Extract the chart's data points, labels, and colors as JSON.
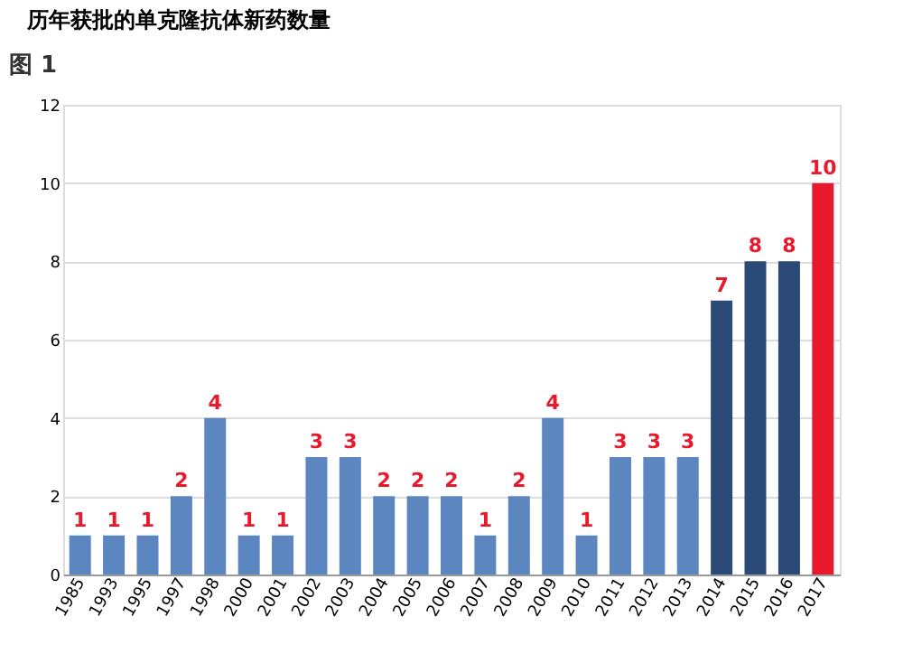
{
  "chart_data": {
    "type": "bar",
    "title": "历年获批的单克隆抗体新药数量",
    "annotations": [
      "图 1"
    ],
    "categories": [
      "1985",
      "1993",
      "1995",
      "1997",
      "1998",
      "2000",
      "2001",
      "2002",
      "2003",
      "2004",
      "2005",
      "2006",
      "2007",
      "2008",
      "2009",
      "2010",
      "2011",
      "2012",
      "2013",
      "2014",
      "2015",
      "2016",
      "2017"
    ],
    "values": [
      1,
      1,
      1,
      2,
      4,
      1,
      1,
      3,
      3,
      2,
      2,
      2,
      1,
      2,
      4,
      1,
      3,
      3,
      3,
      7,
      8,
      8,
      10
    ],
    "colors": [
      "#5b86bf",
      "#5b86bf",
      "#5b86bf",
      "#5b86bf",
      "#5b86bf",
      "#5b86bf",
      "#5b86bf",
      "#5b86bf",
      "#5b86bf",
      "#5b86bf",
      "#5b86bf",
      "#5b86bf",
      "#5b86bf",
      "#5b86bf",
      "#5b86bf",
      "#5b86bf",
      "#5b86bf",
      "#5b86bf",
      "#5b86bf",
      "#2c4a78",
      "#2c4a78",
      "#2c4a78",
      "#e8192c"
    ],
    "ylim": [
      0,
      12
    ],
    "yticks": [
      0,
      2,
      4,
      6,
      8,
      10,
      12
    ],
    "grid": "y",
    "data_labels": true
  }
}
